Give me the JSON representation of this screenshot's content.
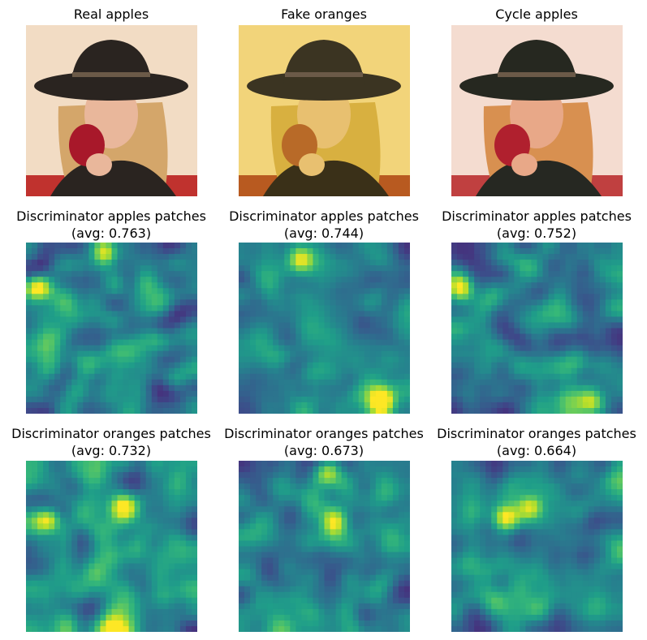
{
  "figure": {
    "rows": [
      {
        "cells": [
          {
            "title_line1": "Real apples",
            "title_line2": "",
            "kind": "photo",
            "variant": "real"
          },
          {
            "title_line1": "Fake oranges",
            "title_line2": "",
            "kind": "photo",
            "variant": "fake"
          },
          {
            "title_line1": "Cycle apples",
            "title_line2": "",
            "kind": "photo",
            "variant": "cycle"
          }
        ]
      },
      {
        "cells": [
          {
            "title_line1": "Discriminator apples patches",
            "title_line2": "(avg: 0.763)",
            "kind": "heatmap",
            "avg": 0.763,
            "seed": 11,
            "hotspots": [
              [
                0.05,
                0.25
              ],
              [
                0.45,
                0.05
              ]
            ]
          },
          {
            "title_line1": "Discriminator apples patches",
            "title_line2": "(avg: 0.744)",
            "kind": "heatmap",
            "avg": 0.744,
            "seed": 23,
            "hotspots": [
              [
                0.35,
                0.08
              ],
              [
                0.82,
                0.9
              ]
            ]
          },
          {
            "title_line1": "Discriminator apples patches",
            "title_line2": "(avg: 0.752)",
            "kind": "heatmap",
            "avg": 0.752,
            "seed": 37,
            "hotspots": [
              [
                0.05,
                0.25
              ],
              [
                0.8,
                0.92
              ]
            ]
          }
        ]
      },
      {
        "cells": [
          {
            "title_line1": "Discriminator oranges patches",
            "title_line2": "(avg: 0.732)",
            "kind": "heatmap",
            "avg": 0.732,
            "seed": 41,
            "hotspots": [
              [
                0.12,
                0.33
              ],
              [
                0.55,
                0.25
              ],
              [
                0.5,
                0.98
              ]
            ]
          },
          {
            "title_line1": "Discriminator oranges patches",
            "title_line2": "(avg: 0.673)",
            "kind": "heatmap",
            "avg": 0.673,
            "seed": 53,
            "hotspots": [
              [
                0.5,
                0.05
              ],
              [
                0.55,
                0.35
              ]
            ]
          },
          {
            "title_line1": "Discriminator oranges patches",
            "title_line2": "(avg: 0.664)",
            "kind": "heatmap",
            "avg": 0.664,
            "seed": 67,
            "hotspots": [
              [
                0.45,
                0.25
              ],
              [
                0.3,
                0.32
              ]
            ]
          }
        ]
      }
    ],
    "colormap": "viridis",
    "palette": {
      "viridis": [
        "#440154",
        "#482878",
        "#3e4989",
        "#31688e",
        "#26828e",
        "#1f9e89",
        "#35b779",
        "#6ece58",
        "#b5de2b",
        "#fde725"
      ],
      "photo_real": {
        "bg": "#f2dcc4",
        "hat": "#2a2420",
        "hair": "#d4a66a",
        "skin": "#e9b79b",
        "apple": "#a8182a",
        "jacket": "#2a2420",
        "floor": "#c0322e"
      },
      "photo_fake": {
        "bg": "#f2d47a",
        "hat": "#3b3422",
        "hair": "#d8b040",
        "skin": "#e8c070",
        "apple": "#b86a28",
        "jacket": "#3a3018",
        "floor": "#b85a20"
      },
      "photo_cycle": {
        "bg": "#f4dcd0",
        "hat": "#262820",
        "hair": "#d89050",
        "skin": "#e8a888",
        "apple": "#b0202e",
        "jacket": "#262822",
        "floor": "#c04040"
      }
    }
  }
}
